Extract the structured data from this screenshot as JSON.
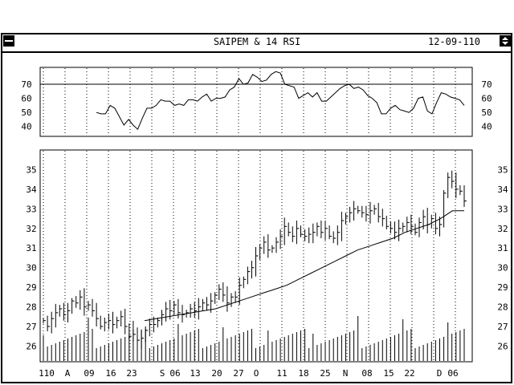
{
  "window": {
    "title": "SAIPEM & 14 RSI",
    "date": "12-09-110"
  },
  "icons": {
    "menu": "window-menu-icon",
    "scroll": "scroll-arrows-icon"
  },
  "colors": {
    "ink": "#000000",
    "background": "#ffffff"
  },
  "chart_data": [
    {
      "type": "line",
      "panel": "rsi",
      "y_ticks": [
        "40",
        "50",
        "60",
        "70"
      ],
      "ylim": [
        33,
        82
      ],
      "reference_line": 70,
      "grid": "vertical dotted lines at x-axis ticks",
      "series": [
        {
          "values": [
            50,
            49,
            49,
            55,
            53,
            47,
            41,
            45,
            41,
            38,
            46,
            53,
            53,
            55,
            59,
            58,
            58,
            55,
            56,
            55,
            59,
            59,
            58,
            61,
            63,
            58,
            60,
            60,
            61,
            66,
            68,
            74,
            70,
            71,
            77,
            75,
            72,
            73,
            77,
            79,
            78,
            70,
            69,
            68,
            60,
            62,
            64,
            61,
            64,
            58,
            58,
            61,
            64,
            67,
            69,
            70,
            67,
            68,
            66,
            62,
            60,
            57,
            49,
            49,
            53,
            55,
            52,
            51,
            50,
            53,
            60,
            61,
            51,
            49,
            57,
            64,
            63,
            61,
            60,
            59,
            55
          ]
        }
      ]
    },
    {
      "type": "bar",
      "panel": "price",
      "style": "high-low-close bars with moving average line",
      "y_ticks": [
        "26",
        "27",
        "28",
        "29",
        "30",
        "31",
        "32",
        "33",
        "34",
        "35"
      ],
      "ylim": [
        25.2,
        36.0
      ],
      "x_tick_labels": [
        "110",
        "A",
        "09",
        "16",
        "23",
        "S",
        "06",
        "13",
        "20",
        "27",
        "O",
        "11",
        "18",
        "25",
        "N",
        "08",
        "15",
        "22",
        "D",
        "06"
      ],
      "grid": "vertical dotted lines at x-axis ticks",
      "series": [
        {
          "name": "close",
          "values": [
            27.3,
            27.0,
            27.4,
            27.7,
            27.9,
            27.6,
            27.8,
            28.3,
            28.2,
            28.5,
            28.0,
            28.1,
            27.8,
            27.4,
            27.0,
            27.2,
            27.3,
            27.1,
            27.3,
            27.5,
            27.0,
            26.5,
            26.6,
            26.3,
            26.4,
            26.8,
            27.1,
            27.1,
            27.3,
            27.6,
            27.9,
            27.8,
            28.1,
            27.7,
            27.6,
            27.7,
            27.9,
            27.8,
            28.0,
            28.2,
            28.1,
            28.3,
            28.6,
            28.9,
            28.6,
            28.2,
            28.5,
            28.5,
            29.1,
            29.4,
            29.8,
            30.0,
            30.6,
            31.0,
            31.3,
            30.9,
            31.0,
            31.3,
            31.6,
            32.1,
            31.8,
            31.6,
            32.0,
            31.7,
            31.6,
            31.7,
            31.8,
            32.1,
            31.8,
            32.0,
            31.6,
            31.5,
            31.8,
            32.4,
            32.6,
            32.8,
            33.0,
            32.9,
            32.8,
            32.7,
            32.9,
            33.0,
            32.6,
            32.5,
            32.1,
            32.0,
            31.8,
            32.0,
            32.1,
            32.3,
            32.1,
            31.8,
            32.3,
            32.6,
            32.2,
            32.5,
            32.0,
            32.2,
            33.8,
            34.6,
            34.4,
            34.0,
            33.9,
            33.4
          ]
        },
        {
          "name": "moving-average",
          "values": [
            27.3,
            27.4,
            27.5,
            27.6,
            27.7,
            27.8,
            27.9,
            28.1,
            28.3,
            28.5,
            28.7,
            28.9,
            29.1,
            29.4,
            29.7,
            30.0,
            30.3,
            30.6,
            30.9,
            31.1,
            31.3,
            31.5,
            31.8,
            32.0,
            32.2,
            32.5,
            32.9,
            32.9
          ]
        }
      ]
    }
  ]
}
